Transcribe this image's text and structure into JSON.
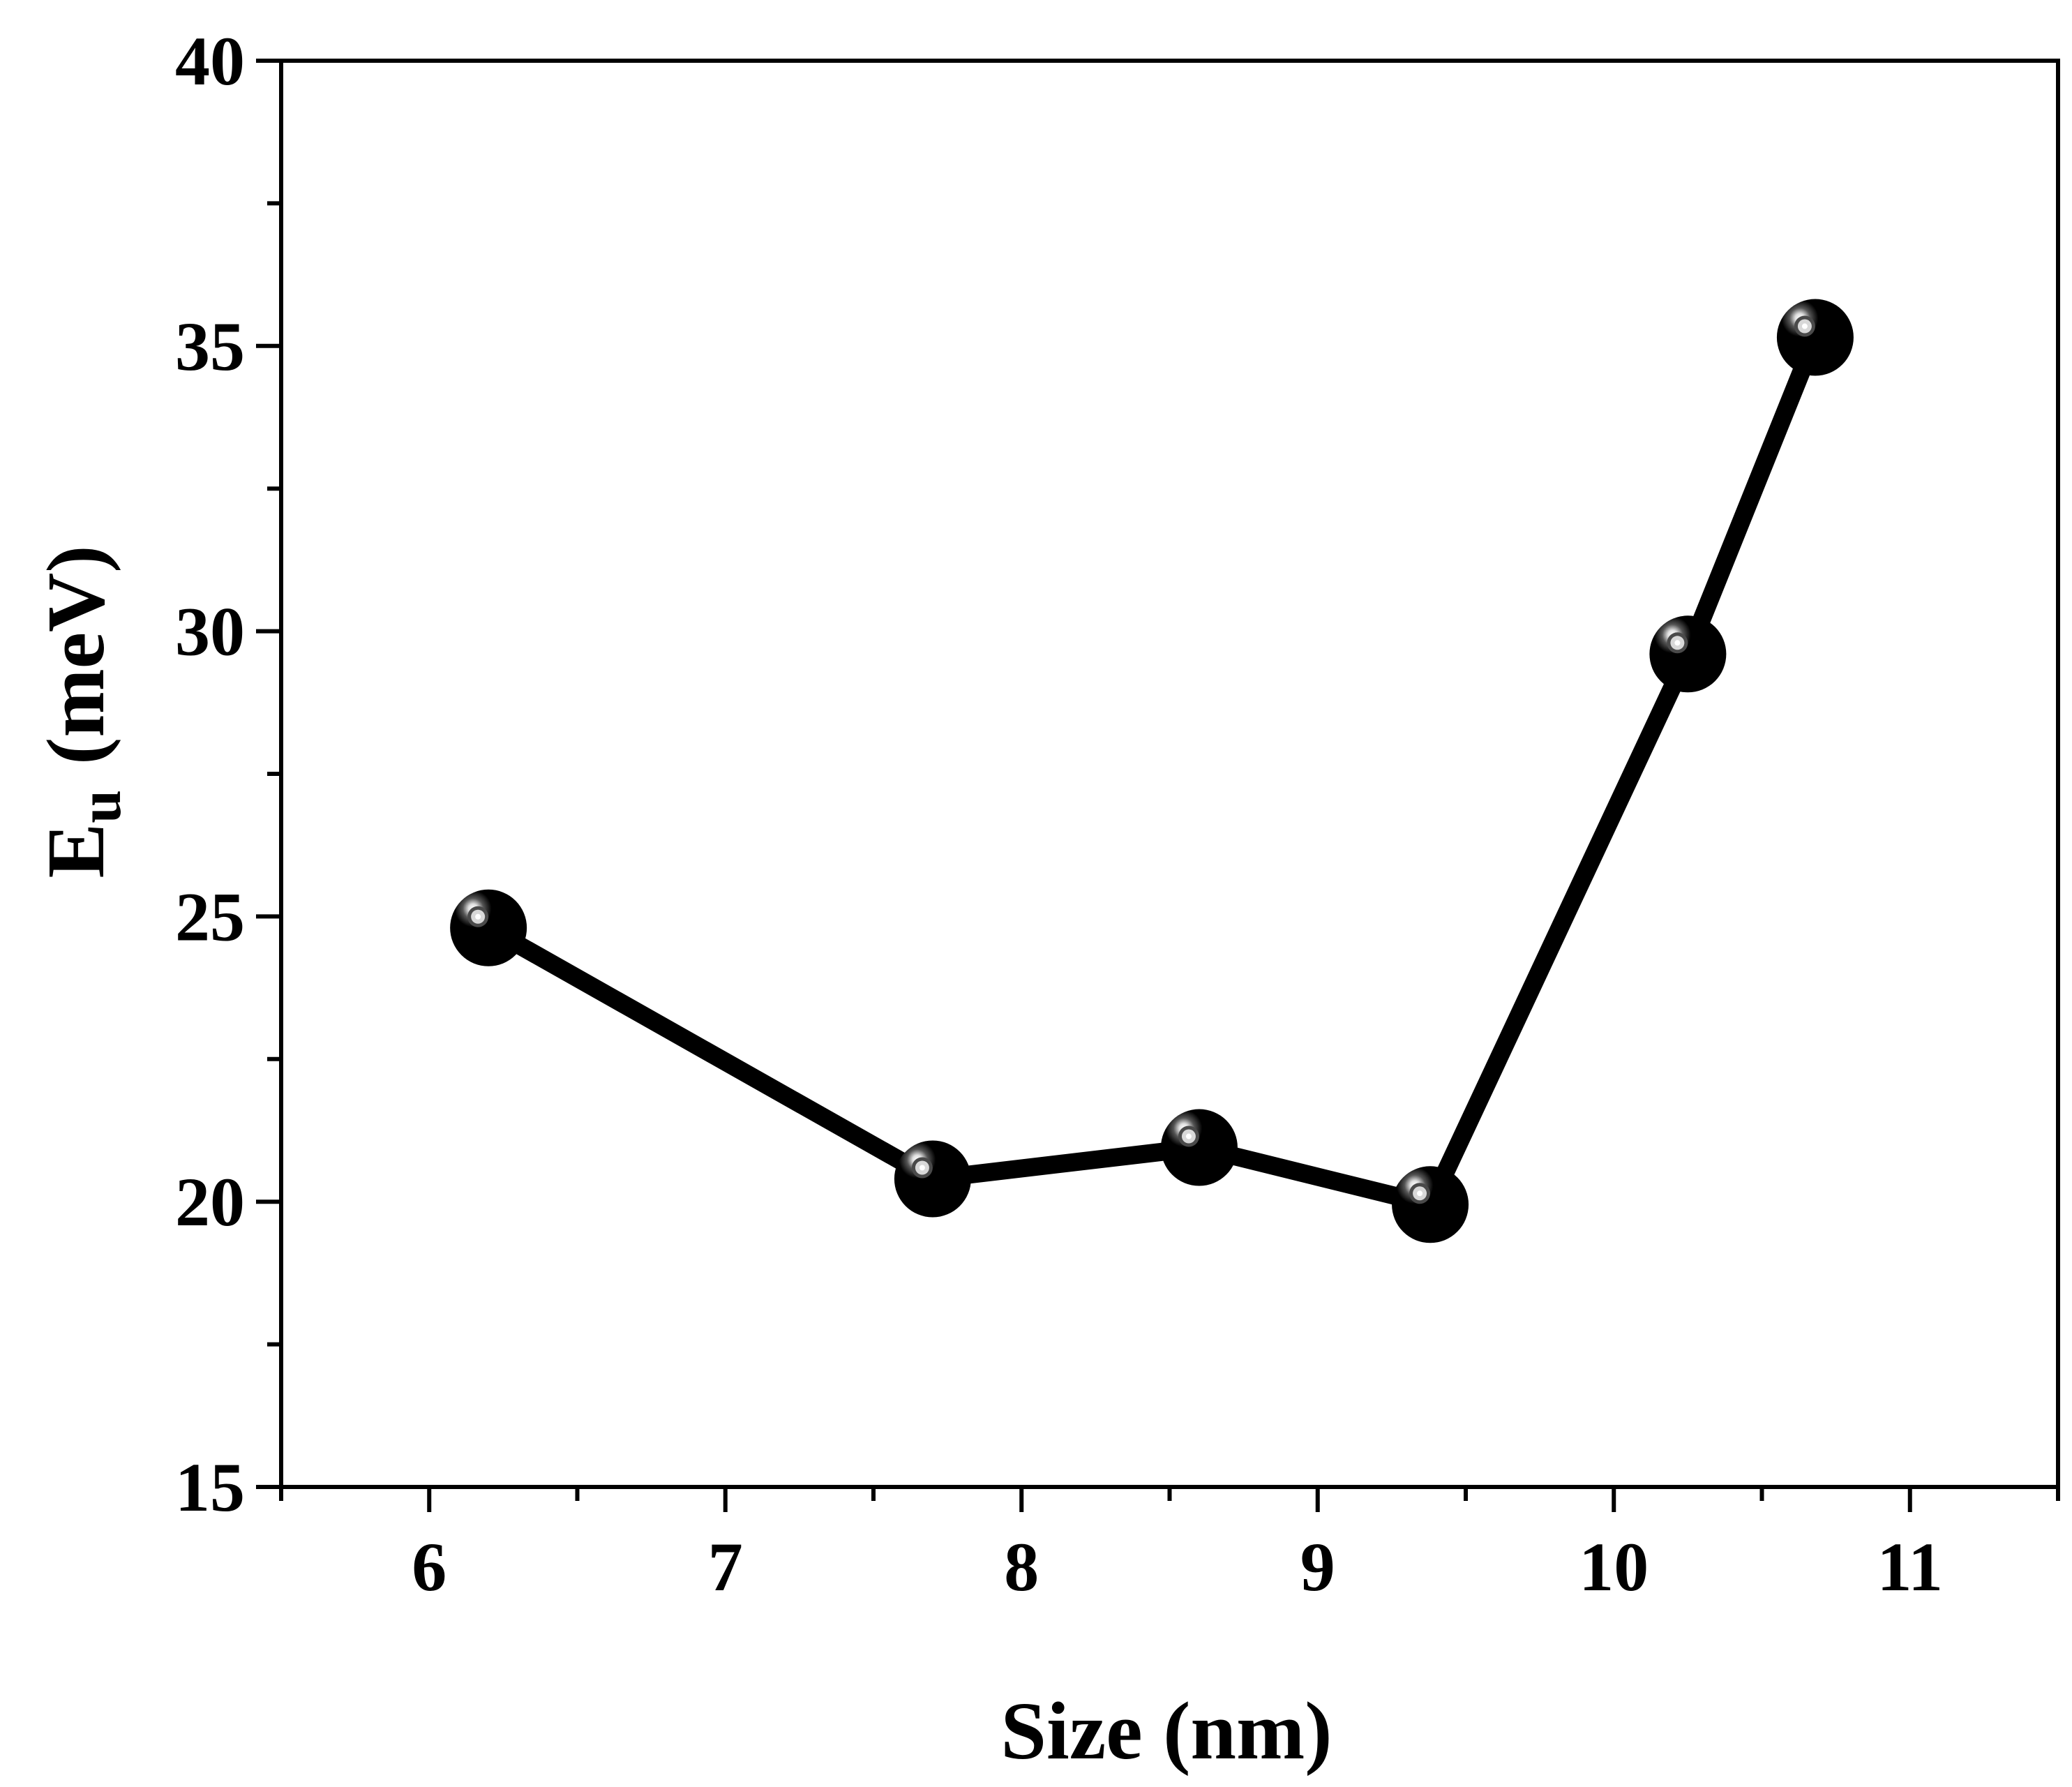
{
  "chart_data": {
    "type": "line",
    "title": "",
    "xlabel": "Size (nm)",
    "ylabel_main": "E",
    "ylabel_sub": "u",
    "ylabel_unit": "(meV)",
    "xlim": [
      5.5,
      11.5
    ],
    "ylim": [
      15,
      40
    ],
    "xticks": [
      6,
      7,
      8,
      9,
      10,
      11
    ],
    "xtick_labels": [
      "6",
      "7",
      "8",
      "9",
      "10",
      "11"
    ],
    "yticks": [
      15,
      20,
      25,
      30,
      35,
      40
    ],
    "ytick_labels": [
      "15",
      "20",
      "25",
      "30",
      "35",
      "40"
    ],
    "x_minor_step": 0.5,
    "y_minor_step": 2.5,
    "grid": false,
    "series": [
      {
        "x": [
          6.2,
          7.7,
          8.6,
          9.38,
          10.25,
          10.68
        ],
        "y": [
          24.8,
          20.4,
          20.95,
          19.95,
          29.6,
          35.15
        ]
      }
    ],
    "colors": {
      "line": "#000000",
      "marker": "#000000",
      "highlight": "#d8d8d8",
      "axis": "#000000",
      "background": "#ffffff"
    }
  }
}
